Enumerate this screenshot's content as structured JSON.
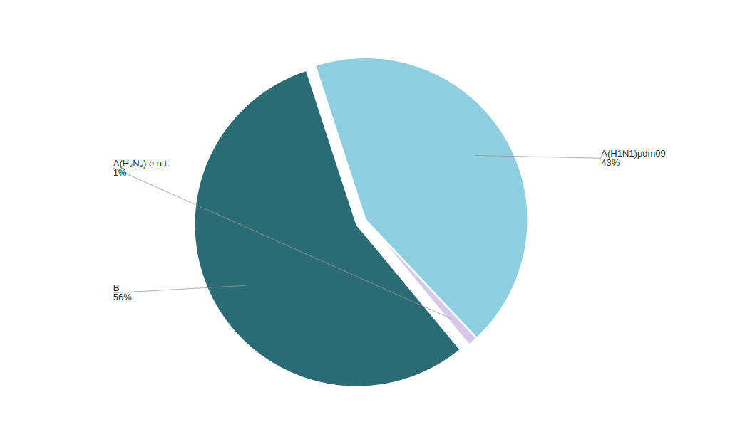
{
  "chart_data": {
    "type": "pie",
    "labels": [
      "A(H1N1)pdm09",
      "A(H₂N₃) e n.t.",
      "B"
    ],
    "values": [
      43,
      1,
      56
    ],
    "value_labels": [
      "43%",
      "1%",
      "56%"
    ],
    "colors": [
      "#8ECFDF",
      "#D5C8E8",
      "#2B6B73"
    ],
    "data_labels": true
  }
}
